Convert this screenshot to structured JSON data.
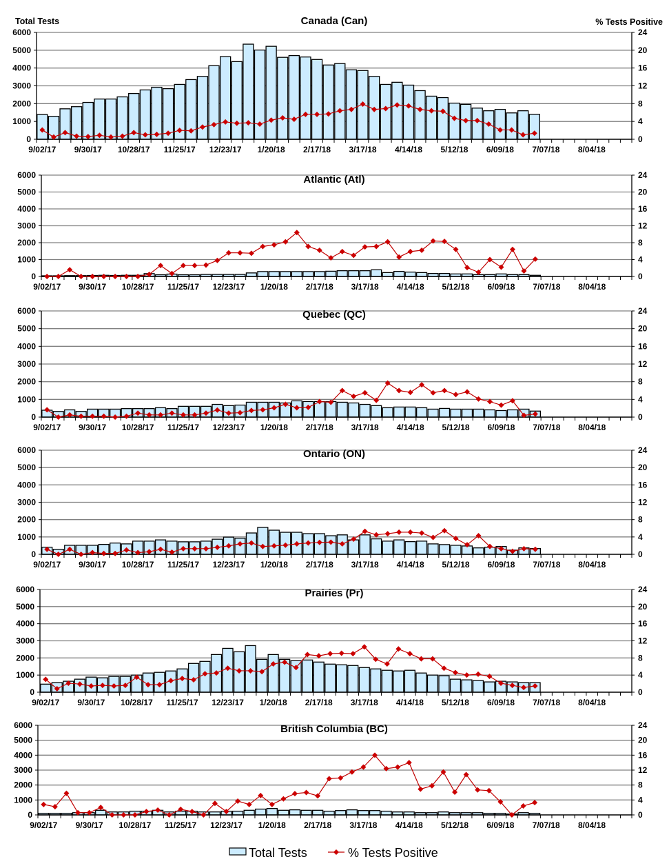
{
  "colors": {
    "bar_fill": "#CCECFF",
    "bar_stroke": "#000000",
    "line": "#C00000",
    "marker": "#CC0000",
    "grid": "#808080"
  },
  "legend": {
    "bar_label": "Total Tests",
    "line_label": "% Tests Positive",
    "placement": "bottom"
  },
  "x_tick_labels": [
    "9/02/17",
    "9/30/17",
    "10/28/17",
    "11/25/17",
    "12/23/17",
    "1/20/18",
    "2/17/18",
    "3/17/18",
    "4/14/18",
    "5/12/18",
    "6/09/18",
    "7/07/18",
    "8/04/18"
  ],
  "left_ticks": [
    0,
    1000,
    2000,
    3000,
    4000,
    5000,
    6000
  ],
  "right_ticks": [
    0,
    4,
    8,
    12,
    16,
    20,
    24
  ],
  "chart_data": [
    {
      "type": "bar",
      "title": "Canada (Can)",
      "ylabel": "Total Tests",
      "y2label": "% Tests Positive",
      "ylim": [
        0,
        6000
      ],
      "y2lim": [
        0,
        24
      ],
      "grid": true,
      "series": [
        {
          "name": "Total Tests",
          "type": "bar",
          "axis": "left",
          "values": [
            1390,
            1290,
            1710,
            1830,
            2070,
            2260,
            2260,
            2380,
            2570,
            2770,
            2920,
            2840,
            3080,
            3350,
            3530,
            4130,
            4640,
            4360,
            5340,
            5010,
            5220,
            4600,
            4700,
            4620,
            4480,
            4170,
            4250,
            3900,
            3860,
            3530,
            3080,
            3200,
            3040,
            2730,
            2420,
            2340,
            2030,
            1960,
            1750,
            1600,
            1680,
            1480,
            1600,
            1400
          ]
        },
        {
          "name": "% Tests Positive",
          "type": "line",
          "axis": "right",
          "values": [
            2.1,
            0.5,
            1.5,
            0.7,
            0.6,
            0.9,
            0.5,
            0.7,
            1.5,
            1.0,
            1.1,
            1.35,
            2.0,
            1.9,
            2.75,
            3.3,
            3.9,
            3.6,
            3.7,
            3.4,
            4.3,
            4.8,
            4.5,
            5.6,
            5.6,
            5.7,
            6.4,
            6.7,
            7.9,
            6.7,
            6.9,
            7.7,
            7.5,
            6.7,
            6.4,
            6.3,
            4.7,
            4.2,
            4.2,
            3.4,
            2.1,
            2.1,
            1.0,
            1.35
          ]
        }
      ]
    },
    {
      "type": "bar",
      "title": "Atlantic (Atl)",
      "ylim": [
        0,
        6000
      ],
      "y2lim": [
        0,
        24
      ],
      "grid": true,
      "series": [
        {
          "name": "Total Tests",
          "type": "bar",
          "axis": "left",
          "values": [
            40,
            40,
            50,
            50,
            60,
            70,
            60,
            70,
            70,
            170,
            100,
            140,
            100,
            100,
            120,
            120,
            120,
            120,
            210,
            290,
            290,
            290,
            290,
            290,
            290,
            310,
            340,
            340,
            340,
            395,
            230,
            300,
            260,
            230,
            177,
            177,
            150,
            150,
            110,
            110,
            150,
            110,
            110,
            70
          ]
        },
        {
          "name": "% Tests Positive",
          "type": "line",
          "axis": "right",
          "values": [
            0,
            0,
            1.6,
            0,
            0,
            0,
            0,
            0,
            0,
            0.5,
            2.6,
            0.7,
            2.6,
            2.6,
            2.7,
            3.8,
            5.6,
            5.6,
            5.5,
            7.1,
            7.5,
            8.2,
            10.4,
            7.1,
            6.2,
            4.4,
            5.9,
            5.0,
            7.0,
            7.1,
            8.2,
            4.6,
            5.9,
            6.2,
            8.4,
            8.3,
            6.4,
            2.1,
            1.0,
            4.0,
            2.2,
            6.4,
            1.3,
            4.1
          ]
        }
      ]
    },
    {
      "type": "bar",
      "title": "Quebec (QC)",
      "ylim": [
        0,
        6000
      ],
      "y2lim": [
        0,
        24
      ],
      "grid": true,
      "series": [
        {
          "name": "Total Tests",
          "type": "bar",
          "axis": "left",
          "values": [
            390,
            320,
            410,
            320,
            450,
            450,
            450,
            480,
            480,
            480,
            530,
            480,
            610,
            610,
            610,
            720,
            650,
            680,
            840,
            840,
            840,
            800,
            920,
            880,
            880,
            880,
            840,
            800,
            720,
            650,
            530,
            570,
            570,
            530,
            450,
            490,
            450,
            450,
            450,
            410,
            370,
            410,
            450,
            340
          ]
        },
        {
          "name": "% Tests Positive",
          "type": "line",
          "axis": "right",
          "values": [
            1.65,
            0,
            0.5,
            0.2,
            0.2,
            0.2,
            0,
            0.2,
            0.9,
            0.5,
            0.5,
            0.9,
            0.5,
            0.5,
            0.9,
            1.6,
            0.9,
            1.0,
            1.5,
            1.65,
            2.1,
            2.9,
            2.1,
            2.2,
            3.5,
            3.35,
            6.0,
            4.7,
            5.5,
            3.8,
            7.7,
            6.0,
            5.6,
            7.3,
            5.5,
            6.0,
            5.1,
            5.7,
            4.1,
            3.5,
            2.7,
            3.7,
            0.4,
            0.7
          ]
        }
      ]
    },
    {
      "type": "bar",
      "title": "Ontario (ON)",
      "ylim": [
        0,
        6000
      ],
      "y2lim": [
        0,
        24
      ],
      "grid": true,
      "series": [
        {
          "name": "Total Tests",
          "type": "bar",
          "axis": "left",
          "values": [
            410,
            290,
            520,
            520,
            520,
            570,
            650,
            600,
            760,
            760,
            830,
            760,
            720,
            720,
            760,
            870,
            990,
            930,
            1230,
            1550,
            1390,
            1270,
            1270,
            1190,
            1190,
            1070,
            1120,
            830,
            1120,
            890,
            760,
            830,
            730,
            760,
            600,
            560,
            520,
            480,
            370,
            410,
            450,
            240,
            370,
            330
          ]
        },
        {
          "name": "% Tests Positive",
          "type": "line",
          "axis": "right",
          "values": [
            1.15,
            0,
            1.15,
            0,
            0.4,
            0.2,
            0.2,
            1.0,
            0.4,
            0.6,
            1.15,
            0.5,
            1.3,
            1.3,
            1.3,
            1.6,
            1.95,
            2.4,
            2.6,
            1.8,
            1.95,
            2.1,
            2.4,
            2.6,
            2.75,
            2.8,
            2.4,
            3.5,
            5.3,
            4.5,
            4.75,
            5.1,
            5.1,
            4.9,
            3.9,
            5.45,
            3.65,
            2.2,
            4.3,
            1.8,
            1.3,
            0.7,
            1.3,
            1.15
          ]
        }
      ]
    },
    {
      "type": "bar",
      "title": "Prairies (Pr)",
      "ylim": [
        0,
        6000
      ],
      "y2lim": [
        0,
        24
      ],
      "grid": true,
      "series": [
        {
          "name": "Total Tests",
          "type": "bar",
          "axis": "left",
          "values": [
            470,
            560,
            640,
            760,
            880,
            840,
            920,
            920,
            1000,
            1120,
            1160,
            1240,
            1360,
            1680,
            1800,
            2200,
            2560,
            2360,
            2720,
            1920,
            2200,
            1920,
            1840,
            1880,
            1760,
            1640,
            1600,
            1560,
            1440,
            1360,
            1280,
            1240,
            1280,
            1120,
            1000,
            960,
            760,
            720,
            680,
            600,
            640,
            600,
            560,
            560
          ]
        },
        {
          "name": "% Tests Positive",
          "type": "line",
          "axis": "right",
          "values": [
            3.0,
            0.8,
            2.1,
            1.9,
            1.45,
            1.6,
            1.45,
            1.6,
            3.5,
            1.75,
            1.75,
            2.7,
            3.2,
            2.9,
            4.3,
            4.5,
            5.6,
            5.0,
            5.0,
            4.8,
            6.6,
            7.0,
            5.75,
            8.8,
            8.5,
            9.0,
            9.1,
            9.0,
            10.6,
            7.7,
            6.6,
            10.1,
            9.0,
            7.8,
            7.8,
            5.6,
            4.6,
            4.0,
            4.2,
            3.7,
            2.1,
            1.6,
            1.1,
            1.45
          ]
        }
      ]
    },
    {
      "type": "bar",
      "title": "British Columbia (BC)",
      "ylim": [
        0,
        6000
      ],
      "y2lim": [
        0,
        24
      ],
      "grid": true,
      "series": [
        {
          "name": "Total Tests",
          "type": "bar",
          "axis": "left",
          "values": [
            110,
            110,
            110,
            150,
            150,
            310,
            200,
            200,
            250,
            250,
            310,
            200,
            250,
            250,
            200,
            200,
            250,
            250,
            310,
            390,
            430,
            310,
            340,
            310,
            310,
            250,
            290,
            340,
            290,
            290,
            250,
            200,
            200,
            150,
            150,
            200,
            150,
            150,
            150,
            110,
            110,
            60,
            150,
            110
          ]
        },
        {
          "name": "% Tests Positive",
          "type": "line",
          "axis": "right",
          "values": [
            2.8,
            2.2,
            5.8,
            0.6,
            0.6,
            2.0,
            0,
            0,
            0,
            0.9,
            1.3,
            0,
            1.5,
            0.9,
            0,
            3.1,
            0.9,
            3.7,
            2.8,
            5.2,
            2.8,
            4.3,
            5.7,
            6.0,
            5.1,
            9.7,
            9.9,
            11.5,
            12.8,
            16.0,
            12.4,
            12.8,
            14.0,
            6.9,
            7.8,
            11.5,
            6.1,
            10.8,
            6.7,
            6.5,
            3.5,
            0,
            2.4,
            3.3
          ]
        }
      ]
    }
  ]
}
